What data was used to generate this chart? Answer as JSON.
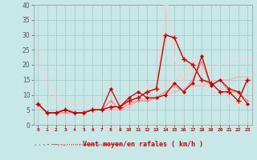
{
  "xlabel": "Vent moyen/en rafales ( km/h )",
  "x_labels": [
    "0",
    "1",
    "2",
    "3",
    "4",
    "5",
    "6",
    "7",
    "8",
    "9",
    "10",
    "11",
    "12",
    "13",
    "14",
    "15",
    "16",
    "17",
    "18",
    "19",
    "20",
    "21",
    "22",
    "23"
  ],
  "ylim": [
    0,
    40
  ],
  "yticks": [
    0,
    5,
    10,
    15,
    20,
    25,
    30,
    35,
    40
  ],
  "background_color": "#c8e8e8",
  "grid_color": "#b0c8c8",
  "line_light_pink_color": "#ffaaaa",
  "line_dark_red_color": "#cc0000",
  "line_pink_color": "#ff7777",
  "line_pale_pink_color": "#ffcccc",
  "line1_data": [
    25,
    14,
    9,
    7,
    7,
    7,
    7,
    7,
    7,
    7,
    8,
    9,
    10,
    12,
    14,
    15,
    16,
    17,
    18,
    19,
    20,
    21,
    22,
    23
  ],
  "line2_data": [
    7,
    4,
    4,
    4,
    4,
    4,
    5,
    5,
    5,
    5,
    6,
    8,
    9,
    9,
    10,
    11,
    12,
    13,
    13,
    14,
    15,
    15,
    16,
    16
  ],
  "line3_data": [
    7,
    4,
    4,
    4,
    4,
    4,
    5,
    5,
    8,
    5,
    7,
    8,
    8,
    9,
    11,
    13,
    11,
    15,
    21,
    13,
    15,
    11,
    11,
    8
  ],
  "line4_data": [
    7,
    4,
    4,
    5,
    4,
    4,
    5,
    5,
    12,
    6,
    9,
    11,
    9,
    9,
    10,
    14,
    11,
    14,
    23,
    13,
    15,
    12,
    11,
    7
  ],
  "line5_data": [
    7,
    4,
    4,
    5,
    4,
    4,
    5,
    5,
    6,
    6,
    8,
    9,
    11,
    12,
    30,
    29,
    22,
    20,
    15,
    14,
    11,
    11,
    8,
    15
  ],
  "line6_data": [
    7,
    4,
    4,
    5,
    4,
    4,
    5,
    5,
    6,
    6,
    9,
    11,
    13,
    12,
    40,
    22,
    14,
    22,
    14,
    14,
    11,
    8,
    7,
    7
  ]
}
